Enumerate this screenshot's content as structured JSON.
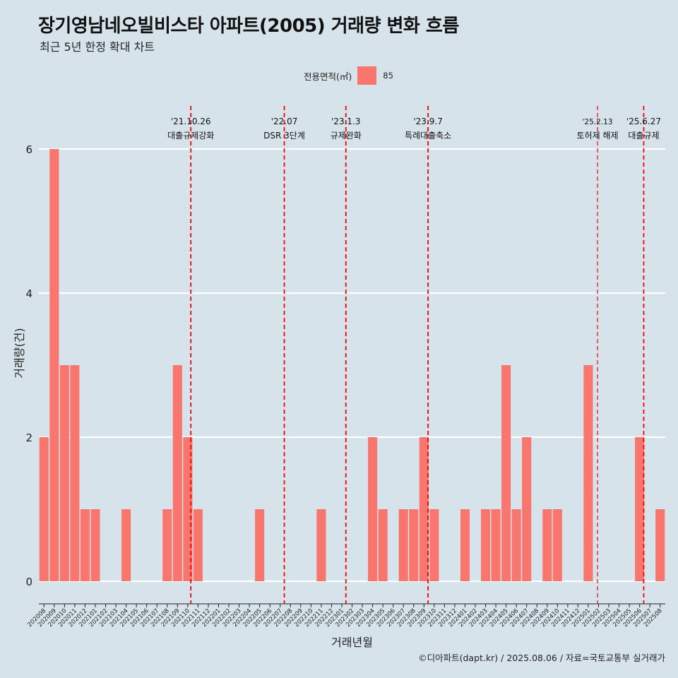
{
  "title": "장기영남네오빌비스타 아파트(2005) 거래량 변화 흐름",
  "subtitle": "최근 5년 한정 확대 차트",
  "legend": {
    "title": "전용면적(㎡)",
    "item": "85"
  },
  "caption": "©디아파트(dapt.kr) / 2025.08.06 / 자료=국토교통부 실거래가",
  "colors": {
    "bar": "#f8766d",
    "vline": "#ff0000",
    "grid": "#ffffff",
    "background": "#d6e3ea"
  },
  "chart_data": {
    "type": "bar",
    "xlabel": "거래년월",
    "ylabel": "거래량(건)",
    "ylim": [
      0,
      6
    ],
    "yticks": [
      0,
      2,
      4,
      6
    ],
    "grid": true,
    "legend_position": "top",
    "categories": [
      "202008",
      "202009",
      "202010",
      "202011",
      "202012",
      "202101",
      "202102",
      "202103",
      "202104",
      "202105",
      "202106",
      "202107",
      "202108",
      "202109",
      "202110",
      "202111",
      "202112",
      "202201",
      "202202",
      "202203",
      "202204",
      "202205",
      "202206",
      "202207",
      "202208",
      "202209",
      "202210",
      "202211",
      "202212",
      "202301",
      "202302",
      "202303",
      "202304",
      "202305",
      "202306",
      "202307",
      "202308",
      "202309",
      "202310",
      "202311",
      "202312",
      "202401",
      "202402",
      "202403",
      "202404",
      "202405",
      "202406",
      "202407",
      "202408",
      "202409",
      "202410",
      "202411",
      "202412",
      "202501",
      "202502",
      "202503",
      "202504",
      "202505",
      "202506",
      "202507",
      "202508"
    ],
    "series": [
      {
        "name": "85",
        "values": [
          2,
          6,
          3,
          3,
          1,
          1,
          0,
          0,
          1,
          0,
          0,
          0,
          1,
          3,
          2,
          1,
          0,
          0,
          0,
          0,
          0,
          1,
          0,
          0,
          0,
          0,
          0,
          1,
          0,
          0,
          0,
          0,
          2,
          1,
          0,
          1,
          1,
          2,
          1,
          0,
          0,
          1,
          0,
          1,
          1,
          3,
          1,
          2,
          0,
          1,
          1,
          0,
          0,
          3,
          0,
          0,
          0,
          0,
          2,
          0,
          1
        ]
      }
    ],
    "annotations": [
      {
        "date": "'21.10.26",
        "label": "대출규제강화",
        "index": 14.8
      },
      {
        "date": "'22.07",
        "label": "DSR 3단계",
        "index": 23.9
      },
      {
        "date": "'23.1.3",
        "label": "규제완화",
        "index": 29.9
      },
      {
        "date": "'23.9.7",
        "label": "특례대출축소",
        "index": 37.9
      },
      {
        "date": "'25.2.13",
        "label": "토허제 해제",
        "index": 54.4,
        "thin": true
      },
      {
        "date": "'25.6.27",
        "label": "대출규제",
        "index": 58.9
      }
    ]
  }
}
